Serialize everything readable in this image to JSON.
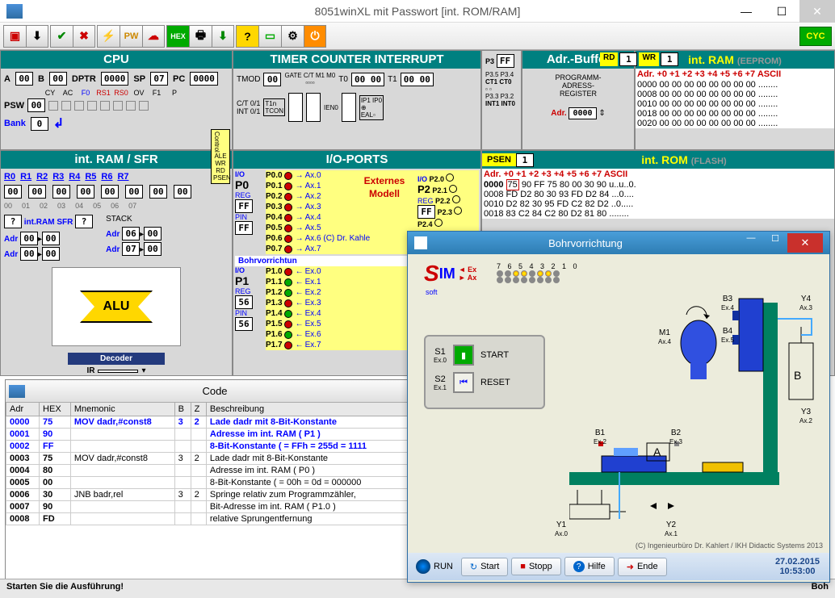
{
  "app": {
    "title": "8051winXL mit Passwort [int. ROM/RAM]",
    "cyc_label": "CYC"
  },
  "toolbar_icons": [
    "📂",
    "⬇",
    "✔",
    "✖",
    "⚡",
    "PW",
    "☁",
    "HEX",
    "🖶",
    "⬇",
    "?",
    "▭",
    "⚙",
    "⏻"
  ],
  "panels": {
    "cpu": {
      "title": "CPU",
      "A": "00",
      "B": "00",
      "DPTR": "0000",
      "SP": "07",
      "PC": "0000",
      "PSW": "00",
      "flags": [
        "CY",
        "AC",
        "F0",
        "RS1",
        "RS0",
        "OV",
        "F1",
        "P"
      ],
      "flag_vals": [
        0,
        0,
        0,
        0,
        0,
        0,
        0,
        0
      ],
      "bank_label": "Bank",
      "bank_val": "0"
    },
    "timer": {
      "title": "TIMER  COUNTER  INTERRUPT",
      "TMOD": "00",
      "T0": "00 00",
      "T1": "00 00",
      "ct_labels": [
        "C/T 0/1",
        "INT 0/1"
      ],
      "gate_labels": [
        "GATE",
        "C/T",
        "M1",
        "M0"
      ],
      "P3": "FF",
      "p3_pins": [
        "P3.5",
        "P3.4",
        "CT1",
        "CT0",
        "P3.3",
        "P3.2",
        "INT1",
        "INT0"
      ]
    },
    "adr": {
      "title": "Adr.-Buffer",
      "label": "PROGRAMM-\nADRESS-\nREGISTER",
      "adr_label": "Adr.",
      "value": "0000"
    },
    "ram": {
      "title": "int. RAM",
      "subtitle": "(EEPROM)",
      "rd": "RD",
      "rd_val": "1",
      "wr": "WR",
      "wr_val": "1",
      "cols": "Adr. +0 +1 +2 +3 +4 +5 +6 +7   ASCII",
      "rows": [
        "0000 00 00 00 00 00 00 00 00 ........",
        "0008 00 00 00 00 00 00 00 00 ........",
        "0010 00 00 00 00 00 00 00 00 ........",
        "0018 00 00 00 00 00 00 00 00 ........",
        "0020 00 00 00 00 00 00 00 00 ........"
      ]
    },
    "rom": {
      "title": "int. ROM",
      "subtitle": "(FLASH)",
      "psen": "PSEN",
      "psen_val": "1",
      "cols": "Adr. +0 +1 +2 +3 +4 +5 +6 +7   ASCII",
      "rows": [
        "0000 75 90 FF 75 80 00 30 90 u..u..0.",
        "0008 FD D2 80 30 93 FD D2 84 ...0....",
        "0010 D2 82 30 95 FD C2 82 D2 ..0.....",
        "0018 83 C2 84 C2 80 D2 81 80 ........"
      ]
    },
    "sfr": {
      "title": "int. RAM / SFR",
      "r_labels": [
        "R0",
        "R1",
        "R2",
        "R3",
        "R4",
        "R5",
        "R6",
        "R7"
      ],
      "r_vals": [
        "00",
        "00",
        "00",
        "00",
        "00",
        "00",
        "00",
        "00"
      ],
      "r_idx": [
        "00",
        "01",
        "02",
        "03",
        "04",
        "05",
        "06",
        "07"
      ],
      "intram_label": "int.RAM SFR",
      "stack_label": "STACK",
      "adr_rows": [
        {
          "l": "Adr",
          "a": "00",
          "b": "00"
        },
        {
          "l": "Adr",
          "a": "00",
          "b": "00"
        }
      ],
      "stack_rows": [
        {
          "l": "Adr",
          "a": "06",
          "b": "00"
        },
        {
          "l": "Adr",
          "a": "07",
          "b": "00"
        }
      ],
      "alu": "ALU",
      "decoder": "Decoder",
      "ir": "IR"
    },
    "io": {
      "title": "I/O-PORTS",
      "p0": {
        "tag": "P0",
        "io": "I/O",
        "reg": "REG",
        "regv": "FF",
        "pin": "PIN",
        "pinv": "FF",
        "lines": [
          "P0.0",
          "P0.1",
          "P0.2",
          "P0.3",
          "P0.4",
          "P0.5",
          "P0.6",
          "P0.7"
        ],
        "ax": [
          "Ax.0",
          "Ax.1",
          "Ax.2",
          "Ax.3",
          "Ax.4",
          "Ax.5",
          "Ax.6 (C) Dr. Kahle",
          "Ax.7"
        ]
      },
      "ext_model": "Externes Modell",
      "bohr_label": "Bohrvorrichtun",
      "p1": {
        "tag": "P1",
        "io": "I/O",
        "reg": "REG",
        "regv": "56",
        "pin": "PIN",
        "pinv": "56",
        "lines": [
          "P1.0",
          "P1.1",
          "P1.2",
          "P1.3",
          "P1.4",
          "P1.5",
          "P1.6",
          "P1.7"
        ],
        "ex": [
          "Ex.0",
          "Ex.1",
          "Ex.2",
          "Ex.3",
          "Ex.4",
          "Ex.5",
          "Ex.6",
          "Ex.7"
        ]
      },
      "p2": {
        "tag": "P2",
        "io": "I/O",
        "reg": "REG",
        "regv": "FF",
        "pin": "PIN",
        "pinv": "FF",
        "lines": [
          "P2.0",
          "P2.1",
          "P2.2",
          "P2.3",
          "P2.4"
        ]
      },
      "control": {
        "title": "Control",
        "ale": "ALE",
        "wr": "WR",
        "rd": "RD",
        "psen": "PSEN"
      }
    }
  },
  "code": {
    "title": "Code",
    "cols": [
      "Adr",
      "HEX",
      "Mnemonic",
      "B",
      "Z",
      "Beschreibung"
    ],
    "rows": [
      {
        "adr": "0000",
        "hex": "75",
        "mn": "MOV dadr,#const8",
        "b": "3",
        "z": "2",
        "desc": "Lade dadr mit 8-Bit-Konstante",
        "hl": true
      },
      {
        "adr": "0001",
        "hex": "90",
        "mn": "",
        "b": "",
        "z": "",
        "desc": "Adresse im int. RAM ( P1 )",
        "hl": true
      },
      {
        "adr": "0002",
        "hex": "FF",
        "mn": "",
        "b": "",
        "z": "",
        "desc": "8-Bit-Konstante ( = FFh = 255d = 1111",
        "hl": true
      },
      {
        "adr": "0003",
        "hex": "75",
        "mn": "MOV dadr,#const8",
        "b": "3",
        "z": "2",
        "desc": "Lade dadr mit 8-Bit-Konstante"
      },
      {
        "adr": "0004",
        "hex": "80",
        "mn": "",
        "b": "",
        "z": "",
        "desc": "Adresse im int. RAM ( P0 )"
      },
      {
        "adr": "0005",
        "hex": "00",
        "mn": "",
        "b": "",
        "z": "",
        "desc": "8-Bit-Konstante ( = 00h = 0d = 000000"
      },
      {
        "adr": "0006",
        "hex": "30",
        "mn": "JNB badr,rel",
        "b": "3",
        "z": "2",
        "desc": "Springe relativ zum Programmzähler,"
      },
      {
        "adr": "0007",
        "hex": "90",
        "mn": "",
        "b": "",
        "z": "",
        "desc": "Bit-Adresse im int. RAM ( P1.0 )"
      },
      {
        "adr": "0008",
        "hex": "FD",
        "mn": "",
        "b": "",
        "z": "",
        "desc": "relative Sprungentfernung"
      }
    ]
  },
  "status": "Starten Sie die Ausführung!",
  "status2": "Boh",
  "bohr": {
    "title": "Bohrvorrichtung",
    "sim": "IM",
    "soft": "soft",
    "ex_label": "Ex",
    "ax_label": "Ax",
    "led_nums": "7 6 5 4 3 2 1 0",
    "s1": "S1",
    "s1_sub": "Ex.0",
    "start": "START",
    "s2": "S2",
    "s2_sub": "Ex.1",
    "reset": "RESET",
    "labels": {
      "M1": "M1",
      "M1s": "Ax.4",
      "B3": "B3",
      "B3s": "Ex.4",
      "B4": "B4",
      "B4s": "Ex.5",
      "Y4": "Y4",
      "Y4s": "Ax.3",
      "Y3": "Y3",
      "Y3s": "Ax.2",
      "B1": "B1",
      "B1s": "Ex.2",
      "B2": "B2",
      "B2s": "Ex.3",
      "Y1": "Y1",
      "Y1s": "Ax.0",
      "Y2": "Y2",
      "Y2s": "Ax.1",
      "A": "A",
      "B": "B"
    },
    "copyright": "(C) Ingenieurbüro Dr. Kahlert / IKH Didactic Systems 2013",
    "toolbar": {
      "run": "RUN",
      "start": "Start",
      "stopp": "Stopp",
      "hilfe": "Hilfe",
      "ende": "Ende",
      "date": "27.02.2015",
      "time": "10:53:00"
    },
    "colors": {
      "bg": "#ececdc",
      "frame": "#008060",
      "metal": "#2040d0",
      "drill": "#3050e0",
      "table": "#008060",
      "clamp": "#f0c000",
      "cyl": "#c0c0c0"
    }
  }
}
